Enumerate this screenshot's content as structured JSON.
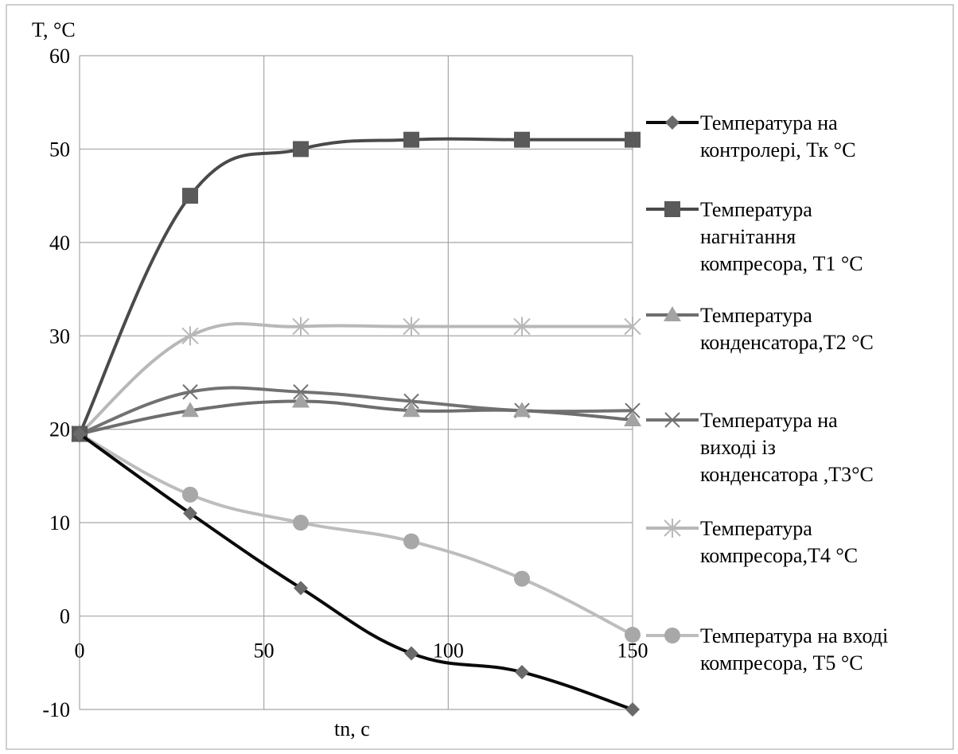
{
  "chart_data": {
    "type": "line",
    "title": "",
    "ylabel": "T, °C",
    "xlabel": "tn, c",
    "xlim": [
      0,
      150
    ],
    "ylim": [
      -10,
      60
    ],
    "xticks": [
      0,
      50,
      100,
      150
    ],
    "yticks": [
      -10,
      0,
      10,
      20,
      30,
      40,
      50,
      60
    ],
    "grid": true,
    "legend_position": "right",
    "x": [
      0,
      30,
      60,
      90,
      120,
      150
    ],
    "series": [
      {
        "name": "Температура на контролері, Тк °С",
        "legend_lines": [
          "Температура на",
          "контролері, Тк °С"
        ],
        "color": "#0a0a0a",
        "marker": "diamond",
        "values": [
          19.5,
          11,
          3,
          -4,
          -6,
          -10
        ]
      },
      {
        "name": "Температура нагнітання компресора, Т1 °С",
        "legend_lines": [
          "Температура",
          "нагнітання",
          "компресора, Т1 °С"
        ],
        "color": "#4a4a4a",
        "marker": "square",
        "values": [
          19.5,
          45,
          50,
          51,
          51,
          51
        ]
      },
      {
        "name": "Температура конденсатора,Т2 °С",
        "legend_lines": [
          "Температура",
          "конденсатора,Т2 °С"
        ],
        "color": "#6e6e6e",
        "marker": "triangle",
        "values": [
          19.5,
          22,
          23,
          22,
          22,
          21
        ]
      },
      {
        "name": "Температура на виході із конденсатора ,Т3°С",
        "legend_lines": [
          "Температура на",
          "виході із",
          "конденсатора ,Т3°С"
        ],
        "color": "#727272",
        "marker": "x",
        "values": [
          19.5,
          24,
          24,
          23,
          22,
          22
        ]
      },
      {
        "name": "Температура компресора,Т4 °С",
        "legend_lines": [
          "Температура",
          "компресора,Т4 °С"
        ],
        "color": "#b8b8b8",
        "marker": "star",
        "values": [
          19.5,
          30,
          31,
          31,
          31,
          31
        ]
      },
      {
        "name": "Температура на вході компресора, Т5 °С",
        "legend_lines": [
          "Температура на вході",
          "компресора, Т5 °С"
        ],
        "color": "#bdbdbd",
        "marker": "circle",
        "values": [
          19.5,
          13,
          10,
          8,
          4,
          -2
        ]
      }
    ]
  }
}
